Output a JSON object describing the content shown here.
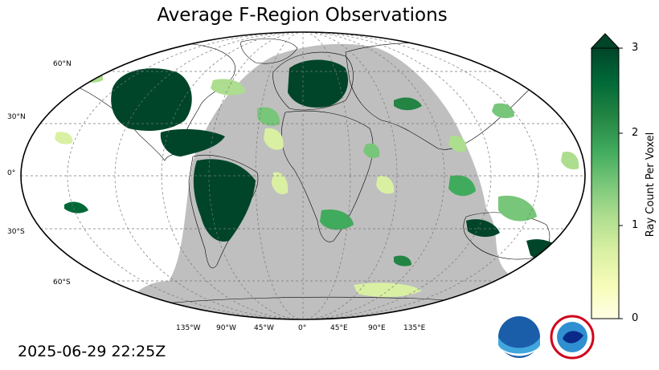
{
  "title": "Average F-Region Observations",
  "timestamp": "2025-06-29 22:25Z",
  "lat_labels": [
    "60°N",
    "30°N",
    "0°",
    "30°S",
    "60°S"
  ],
  "lon_labels": [
    "135°W",
    "90°W",
    "45°W",
    "0°",
    "45°E",
    "90°E",
    "135°E"
  ],
  "colorbar": {
    "label": "Ray Count Per Voxel",
    "ticks": [
      "0",
      "1",
      "2",
      "3"
    ],
    "min": 0,
    "max": 3,
    "extend": "max",
    "colors": [
      "#ffffe5",
      "#f7fcb9",
      "#d9f0a3",
      "#addd8e",
      "#78c679",
      "#41ab5d",
      "#238443",
      "#006837",
      "#004529"
    ]
  },
  "colors": {
    "night_shade": "#bfbfbf",
    "ocean": "#ffffff",
    "coastline": "#000000",
    "grid": "#777777"
  },
  "logos": [
    "NOAA",
    "NATIONAL WEATHER SERVICE"
  ]
}
